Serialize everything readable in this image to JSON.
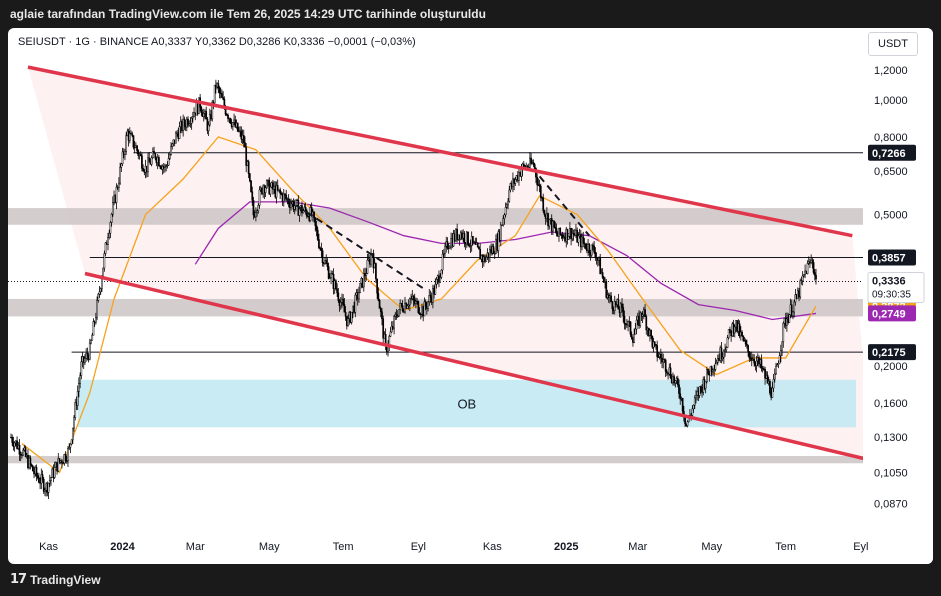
{
  "header": {
    "caption": "aglaie tarafından TradingView.com ile Tem 26, 2025 14:29 UTC tarihinde oluşturuldu"
  },
  "footer": {
    "brand": "TradingView",
    "logo_mark": "17"
  },
  "legend": {
    "text": "SEIUSDT · 1G · BINANCE  A0,3337  Y0,3362  D0,3286  K0,3336  −0,0001 (−0,03%)"
  },
  "chart_data": {
    "type": "candlestick",
    "symbol": "SEIUSDT",
    "interval": "1G",
    "exchange": "BINANCE",
    "ohlc": {
      "open": "0,3337",
      "high": "0,3362",
      "low": "0,3286",
      "close": "0,3336",
      "change": "−0,0001",
      "change_pct": "−0,03%"
    },
    "y_unit": "USDT",
    "y_scale": "log",
    "y_ticks": [
      {
        "v": 1.2,
        "label": "1,2000"
      },
      {
        "v": 1.0,
        "label": "1,0000"
      },
      {
        "v": 0.8,
        "label": "0,8000"
      },
      {
        "v": 0.65,
        "label": "0,6500"
      },
      {
        "v": 0.5,
        "label": "0,5000"
      },
      {
        "v": 0.2,
        "label": "0,2000"
      },
      {
        "v": 0.16,
        "label": "0,1600"
      },
      {
        "v": 0.13,
        "label": "0,1300"
      },
      {
        "v": 0.105,
        "label": "0,1050"
      },
      {
        "v": 0.087,
        "label": "0,0870"
      }
    ],
    "x_ticks": [
      "Kas",
      "2024",
      "Mar",
      "May",
      "Tem",
      "Eyl",
      "Kas",
      "2025",
      "Mar",
      "May",
      "Tem",
      "Eyl"
    ],
    "price_labels": [
      {
        "label": "0,7266",
        "v": 0.7266,
        "bg": "#131722",
        "fg": "#ffffff"
      },
      {
        "label": "0,3857",
        "v": 0.3857,
        "bg": "#131722",
        "fg": "#ffffff"
      },
      {
        "label": "0,2175",
        "v": 0.2175,
        "bg": "#131722",
        "fg": "#ffffff"
      },
      {
        "label": "0,2872",
        "v": 0.2872,
        "bg": "#f7a21b",
        "fg": "#ffffff"
      },
      {
        "label": "0,2749",
        "v": 0.2749,
        "bg": "#9c27b0",
        "fg": "#ffffff"
      }
    ],
    "last_price": {
      "label": "0,3336",
      "countdown": "09:30:35",
      "v": 0.3336
    },
    "horizontal_levels": [
      0.7266,
      0.3857,
      0.2175
    ],
    "zones": [
      {
        "label": "",
        "low": 0.47,
        "high": 0.52,
        "color": "#cfc8c8"
      },
      {
        "label": "",
        "low": 0.27,
        "high": 0.3,
        "color": "#cfc8c8"
      },
      {
        "label": "",
        "low": 0.111,
        "high": 0.116,
        "color": "#cfc8c8"
      },
      {
        "label": "OB",
        "low": 0.138,
        "high": 0.184,
        "color": "#bfe9f2"
      }
    ],
    "channel": {
      "upper": [
        [
          "2023-10-15",
          1.22
        ],
        [
          "2025-08-25",
          0.44
        ]
      ],
      "lower": [
        [
          "2023-12-01",
          0.35
        ],
        [
          "2025-09-10",
          0.113
        ]
      ],
      "color": "#e0364b"
    },
    "dashed_trendlines": [
      [
        [
          "2024-05-15",
          0.55
        ],
        [
          "2024-09-05",
          0.32
        ]
      ],
      [
        [
          "2024-12-10",
          0.63
        ],
        [
          "2025-01-20",
          0.44
        ]
      ]
    ],
    "ma_fast_color": "#f7a21b",
    "ma_slow_color": "#9c27b0",
    "price_path": [
      [
        "2023-10-01",
        0.13
      ],
      [
        "2023-10-10",
        0.12
      ],
      [
        "2023-10-20",
        0.105
      ],
      [
        "2023-10-30",
        0.096
      ],
      [
        "2023-11-08",
        0.11
      ],
      [
        "2023-11-18",
        0.12
      ],
      [
        "2023-11-28",
        0.2
      ],
      [
        "2023-12-05",
        0.22
      ],
      [
        "2023-12-12",
        0.3
      ],
      [
        "2023-12-20",
        0.45
      ],
      [
        "2023-12-28",
        0.6
      ],
      [
        "2024-01-05",
        0.82
      ],
      [
        "2024-01-12",
        0.75
      ],
      [
        "2024-01-20",
        0.66
      ],
      [
        "2024-01-28",
        0.72
      ],
      [
        "2024-02-05",
        0.66
      ],
      [
        "2024-02-15",
        0.82
      ],
      [
        "2024-02-25",
        0.9
      ],
      [
        "2024-03-05",
        0.98
      ],
      [
        "2024-03-12",
        0.84
      ],
      [
        "2024-03-18",
        1.1
      ],
      [
        "2024-03-25",
        0.96
      ],
      [
        "2024-04-02",
        0.86
      ],
      [
        "2024-04-10",
        0.78
      ],
      [
        "2024-04-18",
        0.5
      ],
      [
        "2024-04-26",
        0.6
      ],
      [
        "2024-05-05",
        0.58
      ],
      [
        "2024-05-15",
        0.55
      ],
      [
        "2024-05-25",
        0.52
      ],
      [
        "2024-06-05",
        0.5
      ],
      [
        "2024-06-15",
        0.38
      ],
      [
        "2024-06-25",
        0.32
      ],
      [
        "2024-07-05",
        0.26
      ],
      [
        "2024-07-15",
        0.32
      ],
      [
        "2024-07-25",
        0.4
      ],
      [
        "2024-08-05",
        0.22
      ],
      [
        "2024-08-15",
        0.28
      ],
      [
        "2024-08-25",
        0.3
      ],
      [
        "2024-09-05",
        0.28
      ],
      [
        "2024-09-15",
        0.32
      ],
      [
        "2024-09-25",
        0.42
      ],
      [
        "2024-10-05",
        0.45
      ],
      [
        "2024-10-15",
        0.42
      ],
      [
        "2024-10-25",
        0.38
      ],
      [
        "2024-11-05",
        0.42
      ],
      [
        "2024-11-15",
        0.58
      ],
      [
        "2024-11-25",
        0.66
      ],
      [
        "2024-12-05",
        0.68
      ],
      [
        "2024-12-15",
        0.5
      ],
      [
        "2024-12-25",
        0.44
      ],
      [
        "2025-01-05",
        0.45
      ],
      [
        "2025-01-15",
        0.42
      ],
      [
        "2025-01-25",
        0.4
      ],
      [
        "2025-02-05",
        0.3
      ],
      [
        "2025-02-15",
        0.28
      ],
      [
        "2025-02-25",
        0.24
      ],
      [
        "2025-03-05",
        0.28
      ],
      [
        "2025-03-15",
        0.22
      ],
      [
        "2025-03-25",
        0.2
      ],
      [
        "2025-04-05",
        0.17
      ],
      [
        "2025-04-10",
        0.14
      ],
      [
        "2025-04-20",
        0.17
      ],
      [
        "2025-05-01",
        0.2
      ],
      [
        "2025-05-10",
        0.22
      ],
      [
        "2025-05-20",
        0.26
      ],
      [
        "2025-05-30",
        0.22
      ],
      [
        "2025-06-10",
        0.2
      ],
      [
        "2025-06-20",
        0.17
      ],
      [
        "2025-06-30",
        0.26
      ],
      [
        "2025-07-10",
        0.3
      ],
      [
        "2025-07-18",
        0.36
      ],
      [
        "2025-07-23",
        0.38
      ],
      [
        "2025-07-26",
        0.3336
      ]
    ],
    "ma_fast_path": [
      [
        "2023-10-10",
        0.125
      ],
      [
        "2023-11-10",
        0.105
      ],
      [
        "2023-12-05",
        0.17
      ],
      [
        "2023-12-25",
        0.3
      ],
      [
        "2024-01-20",
        0.5
      ],
      [
        "2024-02-20",
        0.62
      ],
      [
        "2024-03-20",
        0.8
      ],
      [
        "2024-04-20",
        0.74
      ],
      [
        "2024-05-20",
        0.58
      ],
      [
        "2024-06-20",
        0.46
      ],
      [
        "2024-07-20",
        0.34
      ],
      [
        "2024-08-20",
        0.28
      ],
      [
        "2024-09-20",
        0.3
      ],
      [
        "2024-10-20",
        0.38
      ],
      [
        "2024-11-20",
        0.44
      ],
      [
        "2024-12-10",
        0.56
      ],
      [
        "2025-01-10",
        0.5
      ],
      [
        "2025-02-05",
        0.4
      ],
      [
        "2025-03-05",
        0.3
      ],
      [
        "2025-04-05",
        0.22
      ],
      [
        "2025-05-05",
        0.19
      ],
      [
        "2025-06-05",
        0.21
      ],
      [
        "2025-07-01",
        0.21
      ],
      [
        "2025-07-26",
        0.2872
      ]
    ],
    "ma_slow_path": [
      [
        "2024-03-01",
        0.37
      ],
      [
        "2024-03-20",
        0.46
      ],
      [
        "2024-04-15",
        0.54
      ],
      [
        "2024-05-20",
        0.54
      ],
      [
        "2024-06-20",
        0.52
      ],
      [
        "2024-07-20",
        0.48
      ],
      [
        "2024-08-20",
        0.44
      ],
      [
        "2024-09-20",
        0.42
      ],
      [
        "2024-10-20",
        0.42
      ],
      [
        "2024-11-20",
        0.43
      ],
      [
        "2024-12-20",
        0.45
      ],
      [
        "2025-01-20",
        0.44
      ],
      [
        "2025-02-20",
        0.39
      ],
      [
        "2025-03-20",
        0.33
      ],
      [
        "2025-04-20",
        0.29
      ],
      [
        "2025-05-20",
        0.28
      ],
      [
        "2025-06-20",
        0.265
      ],
      [
        "2025-07-26",
        0.2749
      ]
    ]
  }
}
